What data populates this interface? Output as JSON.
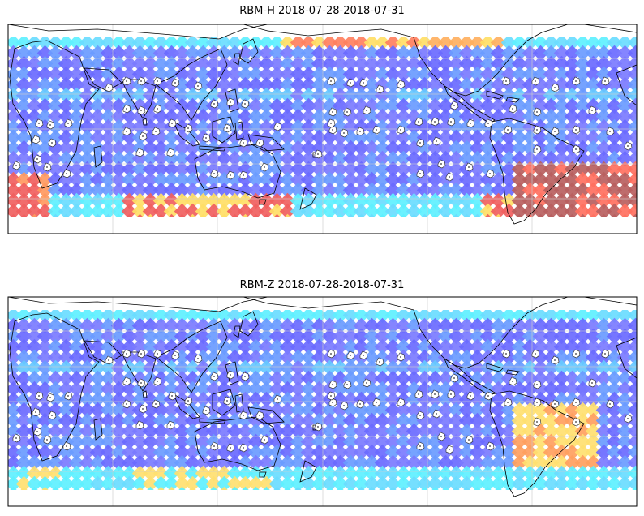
{
  "panels": [
    {
      "id": "h",
      "title": "RBM-H 2018-07-28-2018-07-31",
      "colors": {
        "hot": "#b86060",
        "warm": "#ffde66",
        "cool": "#5ef0ff",
        "base": "#6a6aff"
      }
    },
    {
      "id": "z",
      "title": "RBM-Z 2018-07-28-2018-07-31",
      "colors": {
        "hot": "#ffa060",
        "warm": "#ffe070",
        "cool": "#5ef0ff",
        "base": "#6a6aff"
      }
    }
  ]
}
